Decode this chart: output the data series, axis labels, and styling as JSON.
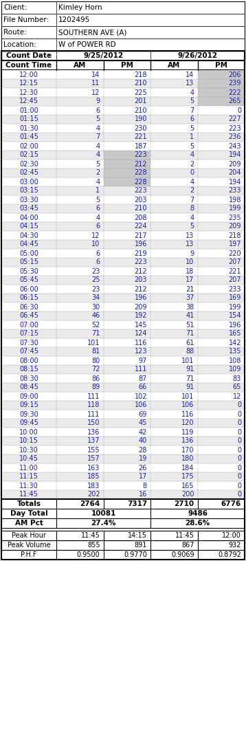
{
  "header_info": [
    [
      "Client:",
      "Kimley Horn"
    ],
    [
      "File Number:",
      "1202495"
    ],
    [
      "Route:",
      "SOUTHERN AVE (A)"
    ],
    [
      "Location:",
      "W of POWER RD"
    ]
  ],
  "date1": "9/25/2012",
  "date2": "9/26/2012",
  "times": [
    "12:00",
    "12:15",
    "12:30",
    "12:45",
    "01:00",
    "01:15",
    "01:30",
    "01:45",
    "02:00",
    "02:15",
    "02:30",
    "02:45",
    "03:00",
    "03:15",
    "03:30",
    "03:45",
    "04:00",
    "04:15",
    "04:30",
    "04:45",
    "05:00",
    "05:15",
    "05:30",
    "05:45",
    "06:00",
    "06:15",
    "06:30",
    "06:45",
    "07:00",
    "07:15",
    "07:30",
    "07:45",
    "08:00",
    "08:15",
    "08:30",
    "08:45",
    "09:00",
    "09:15",
    "09:30",
    "09:45",
    "10:00",
    "10:15",
    "10:30",
    "10:45",
    "11:00",
    "11:15",
    "11:30",
    "11:45"
  ],
  "d1_am": [
    14,
    11,
    12,
    9,
    6,
    5,
    4,
    7,
    4,
    4,
    5,
    2,
    4,
    1,
    5,
    6,
    4,
    6,
    12,
    10,
    6,
    6,
    23,
    25,
    23,
    34,
    30,
    46,
    52,
    71,
    101,
    81,
    80,
    72,
    86,
    89,
    111,
    118,
    111,
    150,
    136,
    137,
    155,
    157,
    163,
    185,
    183,
    202
  ],
  "d1_pm": [
    218,
    210,
    225,
    201,
    210,
    190,
    230,
    221,
    187,
    223,
    212,
    228,
    228,
    223,
    203,
    210,
    208,
    224,
    217,
    196,
    219,
    223,
    212,
    203,
    212,
    196,
    209,
    192,
    145,
    124,
    116,
    123,
    97,
    111,
    87,
    66,
    102,
    106,
    69,
    45,
    42,
    40,
    28,
    19,
    26,
    17,
    8,
    16
  ],
  "d2_am": [
    14,
    13,
    4,
    5,
    7,
    6,
    5,
    1,
    5,
    4,
    2,
    0,
    4,
    2,
    7,
    8,
    4,
    5,
    13,
    13,
    9,
    10,
    18,
    17,
    21,
    37,
    38,
    41,
    51,
    71,
    61,
    88,
    101,
    91,
    71,
    91,
    101,
    106,
    116,
    120,
    119,
    136,
    170,
    180,
    184,
    175,
    165,
    200
  ],
  "d2_pm": [
    206,
    239,
    222,
    265,
    0,
    227,
    223,
    236,
    243,
    194,
    209,
    204,
    194,
    233,
    198,
    199,
    235,
    209,
    218,
    197,
    220,
    207,
    221,
    207,
    233,
    169,
    199,
    154,
    196,
    165,
    142,
    135,
    108,
    109,
    83,
    65,
    12,
    0,
    0,
    0,
    0,
    0,
    0,
    0,
    0,
    0,
    0,
    0
  ],
  "totals_d1_am": 2764,
  "totals_d1_pm": 7317,
  "totals_d2_am": 2710,
  "totals_d2_pm": 6776,
  "day_total_d1": 10081,
  "day_total_d2": 9486,
  "am_pct_d1": "27.4%",
  "am_pct_d2": "28.6%",
  "peak_hour_d1_am": "11:45",
  "peak_hour_d1_pm": "14:15",
  "peak_hour_d2_am": "11:45",
  "peak_hour_d2_pm": "12:00",
  "peak_vol_d1_am": 855,
  "peak_vol_d1_pm": 891,
  "peak_vol_d2_am": 867,
  "peak_vol_d2_pm": 932,
  "phf_d1_am": "0.9500",
  "phf_d1_pm": "0.9770",
  "phf_d2_am": "0.9069",
  "phf_d2_pm": "0.8792",
  "gray_cells_d1_pm": [
    "02:15",
    "02:30",
    "02:45",
    "03:00"
  ],
  "gray_cells_d2_pm": [
    "12:00",
    "12:15",
    "12:30",
    "12:45"
  ],
  "fig_w": 3.58,
  "fig_h": 10.75,
  "dpi": 100
}
